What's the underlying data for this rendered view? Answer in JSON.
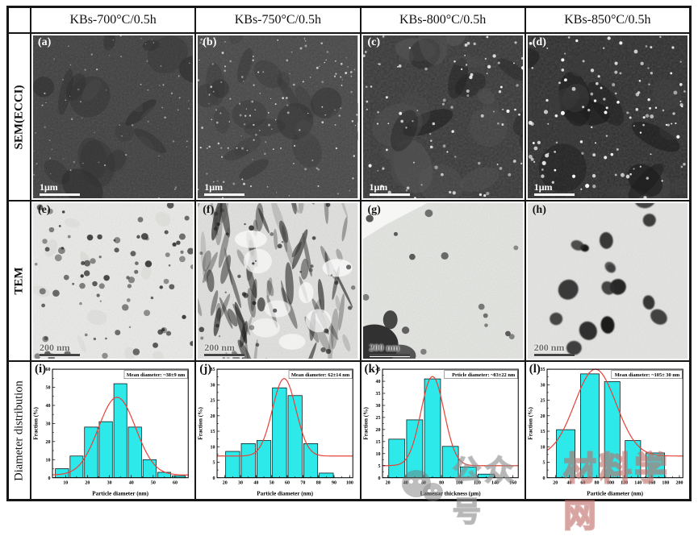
{
  "figure": {
    "column_headers": [
      "KBs-700°C/0.5h",
      "KBs-750°C/0.5h",
      "KBs-800°C/0.5h",
      "KBs-850°C/0.5h"
    ],
    "row_labels": [
      "SEM(ECCI)",
      "TEM",
      "Diameter distribution"
    ],
    "sem_panels": [
      {
        "label": "(a)",
        "scalebar": "1μm"
      },
      {
        "label": "(b)",
        "scalebar": "1μm"
      },
      {
        "label": "(c)",
        "scalebar": "1μm"
      },
      {
        "label": "(d)",
        "scalebar": "1μm"
      }
    ],
    "tem_panels": [
      {
        "label": "(e)",
        "scalebar": "200 nm"
      },
      {
        "label": "(f)",
        "scalebar": "200 nm"
      },
      {
        "label": "(g)",
        "scalebar": "200 nm"
      },
      {
        "label": "(h)",
        "scalebar": "200 nm"
      }
    ]
  },
  "watermark": {
    "logo": "wechat-logo",
    "text1": "公众号",
    "text2": "材料学网"
  },
  "chart_data": [
    {
      "type": "bar",
      "panel_label": "(i)",
      "annotation": "Mean diameter: ~38±9 nm",
      "xlabel": "Particle diameter (nm)",
      "ylabel": "Fraction (%)",
      "xlim": [
        4,
        66
      ],
      "ylim": [
        0,
        60
      ],
      "xticks": [
        10,
        20,
        30,
        40,
        50,
        60
      ],
      "yticks": [
        0,
        10,
        20,
        30,
        40,
        50,
        60
      ],
      "grid": false,
      "legend": "none",
      "bar_color": "#2ee9e9",
      "curve_color": "#e8413a",
      "bars": [
        {
          "x0": 5,
          "x1": 11.7,
          "v": 5
        },
        {
          "x0": 11.7,
          "x1": 18.3,
          "v": 12
        },
        {
          "x0": 18.3,
          "x1": 25,
          "v": 28
        },
        {
          "x0": 25,
          "x1": 31.7,
          "v": 31
        },
        {
          "x0": 31.7,
          "x1": 38.3,
          "v": 52
        },
        {
          "x0": 38.3,
          "x1": 45,
          "v": 28
        },
        {
          "x0": 45,
          "x1": 51.7,
          "v": 10
        },
        {
          "x0": 51.7,
          "x1": 58.3,
          "v": 3
        },
        {
          "x0": 58.3,
          "x1": 65,
          "v": 1
        }
      ],
      "fit_curve": {
        "base": 1.5,
        "amp": 43,
        "mean": 33.5,
        "sigma": 8.5
      }
    },
    {
      "type": "bar",
      "panel_label": "(j)",
      "annotation": "Mean diameter: 62±14 nm",
      "xlabel": "Particle diameter (nm)",
      "ylabel": "Fraction (%)",
      "xlim": [
        15,
        102
      ],
      "ylim": [
        0,
        35
      ],
      "xticks": [
        20,
        30,
        40,
        50,
        60,
        70,
        80,
        90,
        100
      ],
      "yticks": [
        0,
        5,
        10,
        15,
        20,
        25,
        30,
        35
      ],
      "grid": false,
      "legend": "none",
      "bar_color": "#2ee9e9",
      "curve_color": "#e8413a",
      "bars": [
        {
          "x0": 20,
          "x1": 30,
          "v": 8.5
        },
        {
          "x0": 30,
          "x1": 40,
          "v": 11
        },
        {
          "x0": 40,
          "x1": 50,
          "v": 12
        },
        {
          "x0": 50,
          "x1": 60,
          "v": 29
        },
        {
          "x0": 60,
          "x1": 70,
          "v": 26.5
        },
        {
          "x0": 70,
          "x1": 80,
          "v": 11
        },
        {
          "x0": 80,
          "x1": 90,
          "v": 1.5
        }
      ],
      "fit_curve": {
        "base": 7,
        "amp": 25,
        "mean": 58,
        "sigma": 7.5
      }
    },
    {
      "type": "bar",
      "panel_label": "(k)",
      "annotation": "Prticle diameter: ~83±22 nm",
      "xlabel": "Lamellar thickness (μm)",
      "ylabel": "Fraction (%)",
      "xlim": [
        14,
        166
      ],
      "ylim": [
        0,
        45
      ],
      "xticks": [
        20,
        40,
        60,
        80,
        100,
        120,
        140,
        160
      ],
      "yticks": [
        0,
        5,
        10,
        15,
        20,
        25,
        30,
        35,
        40,
        45
      ],
      "grid": false,
      "legend": "none",
      "bar_color": "#2ee9e9",
      "curve_color": "#e8413a",
      "bars": [
        {
          "x0": 20,
          "x1": 40,
          "v": 16
        },
        {
          "x0": 40,
          "x1": 60,
          "v": 24
        },
        {
          "x0": 60,
          "x1": 80,
          "v": 41
        },
        {
          "x0": 80,
          "x1": 100,
          "v": 13
        },
        {
          "x0": 100,
          "x1": 120,
          "v": 4.5
        },
        {
          "x0": 120,
          "x1": 140,
          "v": 1.5
        }
      ],
      "fit_curve": {
        "base": 5,
        "amp": 37,
        "mean": 70,
        "sigma": 13
      }
    },
    {
      "type": "bar",
      "panel_label": "(l)",
      "annotation": "Mean diameter: ~105± 30 nm",
      "xlabel": "Particle diameter (nm)",
      "ylabel": "Fraction (%)",
      "xlim": [
        8,
        205
      ],
      "ylim": [
        0,
        35
      ],
      "xticks": [
        20,
        40,
        60,
        80,
        100,
        120,
        140,
        160,
        180,
        200
      ],
      "yticks": [
        0,
        5,
        10,
        15,
        20,
        25,
        30,
        35
      ],
      "grid": false,
      "legend": "none",
      "bar_color": "#2ee9e9",
      "curve_color": "#e8413a",
      "bars": [
        {
          "x0": 20,
          "x1": 50,
          "v": 15.5
        },
        {
          "x0": 55,
          "x1": 85,
          "v": 33.5
        },
        {
          "x0": 90,
          "x1": 115,
          "v": 31
        },
        {
          "x0": 120,
          "x1": 145,
          "v": 12
        },
        {
          "x0": 150,
          "x1": 180,
          "v": 8
        }
      ],
      "fit_curve": {
        "base": 7,
        "amp": 28,
        "mean": 78,
        "sigma": 30
      }
    }
  ]
}
